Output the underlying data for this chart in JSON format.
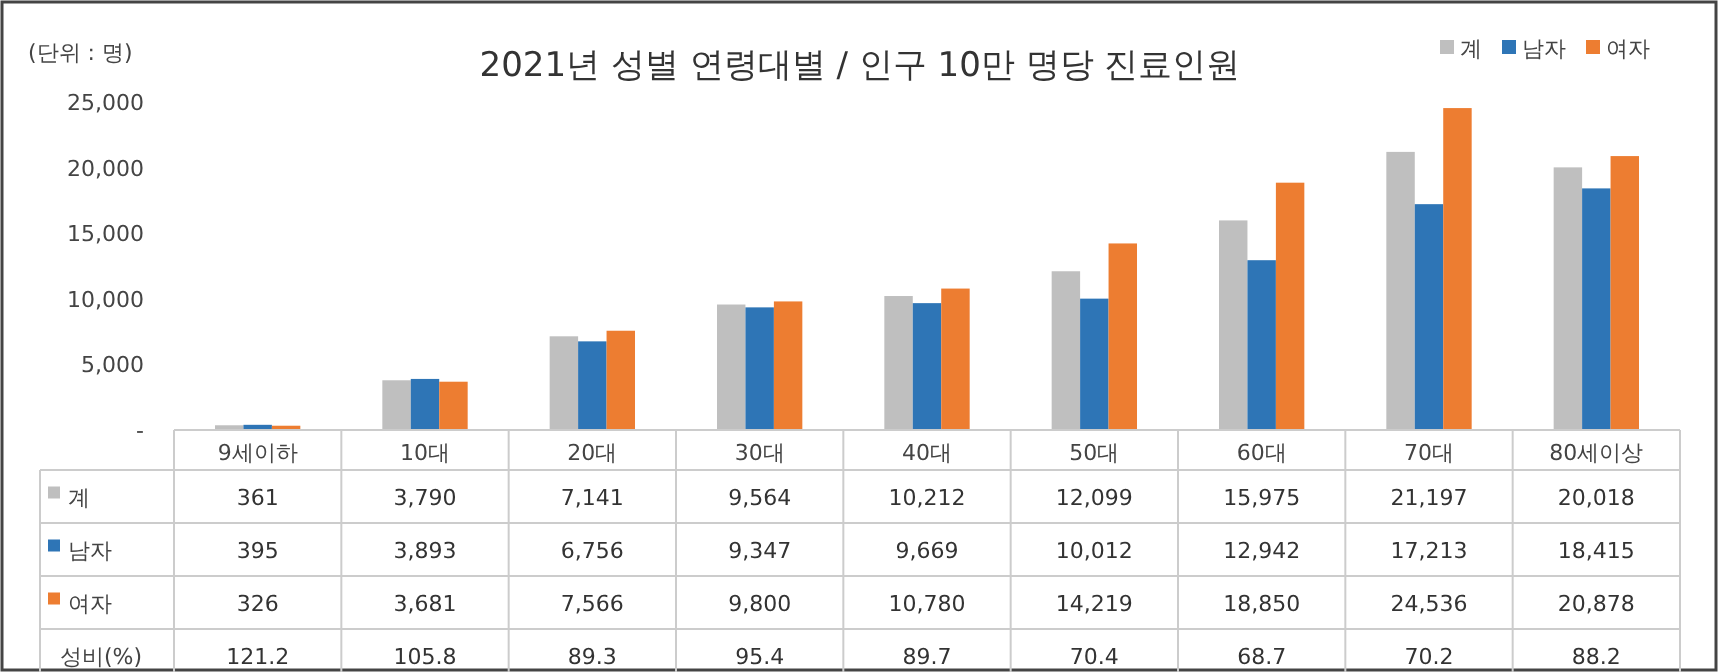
{
  "chart_data": {
    "type": "bar",
    "title": "2021년 성별 연령대별 / 인구 10만 명당 진료인원",
    "ylabel": "(단위 : 명)",
    "categories": [
      "9세이하",
      "10대",
      "20대",
      "30대",
      "40대",
      "50대",
      "60대",
      "70대",
      "80세이상"
    ],
    "series": [
      {
        "name": "계",
        "color": "#bfbfbf",
        "values": [
          361,
          3790,
          7141,
          9564,
          10212,
          12099,
          15975,
          21197,
          20018
        ],
        "value_labels": [
          "361",
          "3,790",
          "7,141",
          "9,564",
          "10,212",
          "12,099",
          "15,975",
          "21,197",
          "20,018"
        ]
      },
      {
        "name": "남자",
        "color": "#2e75b6",
        "values": [
          395,
          3893,
          6756,
          9347,
          9669,
          10012,
          12942,
          17213,
          18415
        ],
        "value_labels": [
          "395",
          "3,893",
          "6,756",
          "9,347",
          "9,669",
          "10,012",
          "12,942",
          "17,213",
          "18,415"
        ]
      },
      {
        "name": "여자",
        "color": "#ed7d31",
        "values": [
          326,
          3681,
          7566,
          9800,
          10780,
          14219,
          18850,
          24536,
          20878
        ],
        "value_labels": [
          "326",
          "3,681",
          "7,566",
          "9,800",
          "10,780",
          "14,219",
          "18,850",
          "24,536",
          "20,878"
        ]
      }
    ],
    "ylim": [
      0,
      25000
    ],
    "yticks": [
      {
        "value": 0,
        "label": "-"
      },
      {
        "value": 5000,
        "label": "5,000"
      },
      {
        "value": 10000,
        "label": "10,000"
      },
      {
        "value": 15000,
        "label": "15,000"
      },
      {
        "value": 20000,
        "label": "20,000"
      },
      {
        "value": 25000,
        "label": "25,000"
      }
    ],
    "legend": "top right",
    "annotations": [
      "성비(%)",
      "121.2",
      "105.8",
      "89.3",
      "95.4",
      "89.7",
      "70.4",
      "68.7",
      "70.2",
      "88.2"
    ]
  }
}
